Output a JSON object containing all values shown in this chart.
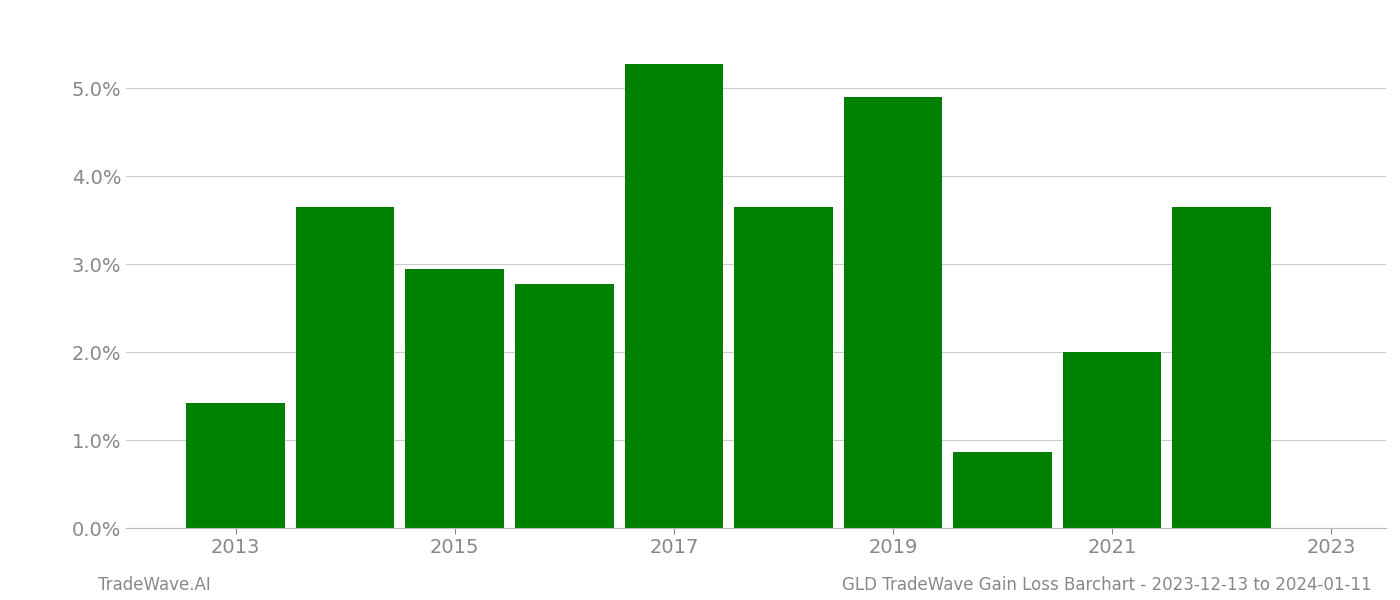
{
  "years": [
    2013,
    2014,
    2015,
    2016,
    2017,
    2018,
    2019,
    2020,
    2021,
    2022
  ],
  "values": [
    0.0142,
    0.0365,
    0.0295,
    0.0278,
    0.0528,
    0.0365,
    0.049,
    0.0087,
    0.02,
    0.0365
  ],
  "bar_color": "#008000",
  "background_color": "#ffffff",
  "grid_color": "#cccccc",
  "axis_label_color": "#888888",
  "ylim": [
    0,
    0.058
  ],
  "yticks": [
    0.0,
    0.01,
    0.02,
    0.03,
    0.04,
    0.05
  ],
  "xlabel_ticks": [
    2013,
    2015,
    2017,
    2019,
    2021,
    2023
  ],
  "xlim": [
    2012.0,
    2023.5
  ],
  "bar_width": 0.9,
  "footer_left": "TradeWave.AI",
  "footer_right": "GLD TradeWave Gain Loss Barchart - 2023-12-13 to 2024-01-11",
  "footer_color": "#888888",
  "footer_fontsize": 12,
  "tick_fontsize": 14
}
